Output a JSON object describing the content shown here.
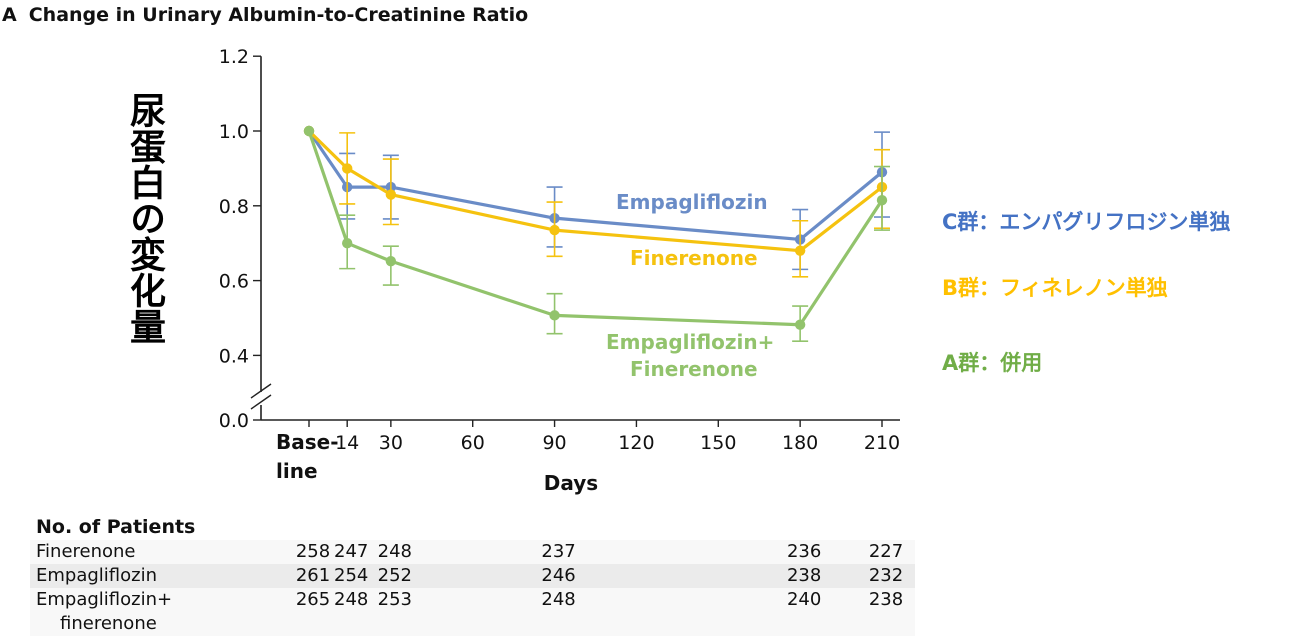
{
  "panel": {
    "letter": "A",
    "title": "Change in Urinary Albumin-to-Creatinine Ratio"
  },
  "ylabel_jp": "尿蛋白の変化量",
  "legend_jp": [
    {
      "text": "C群：エンパグリフロジン単独",
      "color": "#4472c4"
    },
    {
      "text": "B群：フィネレノン単独",
      "color": "#ffc000"
    },
    {
      "text": "A群：併用",
      "color": "#70ad47"
    }
  ],
  "chart_data": {
    "type": "line",
    "xlabel": "Days",
    "ylabel": "",
    "x_ticks": [
      {
        "value": 0,
        "label": [
          "Base-",
          "line"
        ]
      },
      {
        "value": 14,
        "label": [
          "14"
        ]
      },
      {
        "value": 30,
        "label": [
          "30"
        ]
      },
      {
        "value": 60,
        "label": [
          "60"
        ]
      },
      {
        "value": 90,
        "label": [
          "90"
        ]
      },
      {
        "value": 120,
        "label": [
          "120"
        ]
      },
      {
        "value": 150,
        "label": [
          "150"
        ]
      },
      {
        "value": 180,
        "label": [
          "180"
        ]
      },
      {
        "value": 210,
        "label": [
          "210"
        ]
      }
    ],
    "y_ticks": [
      "0.0",
      "0.4",
      "0.6",
      "0.8",
      "1.0",
      "1.2"
    ],
    "ylim": [
      0.35,
      1.2
    ],
    "y_axis_break": true,
    "series": [
      {
        "name": "Empagliflozin",
        "color": "#6a8cc7",
        "label_lines": [
          "Empagliflozin"
        ],
        "x": [
          0,
          14,
          30,
          90,
          180,
          210
        ],
        "y": [
          1.0,
          0.85,
          0.85,
          0.767,
          0.71,
          0.89
        ],
        "err_low": [
          1.0,
          0.765,
          0.765,
          0.69,
          0.63,
          0.77
        ],
        "err_high": [
          1.0,
          0.94,
          0.935,
          0.85,
          0.79,
          0.997
        ]
      },
      {
        "name": "Finerenone",
        "color": "#f5c20f",
        "label_lines": [
          "Finerenone"
        ],
        "x": [
          0,
          14,
          30,
          90,
          180,
          210
        ],
        "y": [
          1.0,
          0.9,
          0.83,
          0.735,
          0.68,
          0.85
        ],
        "err_low": [
          1.0,
          0.805,
          0.75,
          0.665,
          0.61,
          0.74
        ],
        "err_high": [
          1.0,
          0.995,
          0.925,
          0.81,
          0.76,
          0.95
        ]
      },
      {
        "name": "Empagliflozin+Finerenone",
        "color": "#92c36c",
        "label_lines": [
          "Empagliflozin+",
          "Finerenone"
        ],
        "x": [
          0,
          14,
          30,
          90,
          180,
          210
        ],
        "y": [
          1.0,
          0.7,
          0.652,
          0.507,
          0.482,
          0.815
        ],
        "err_low": [
          1.0,
          0.632,
          0.588,
          0.458,
          0.438,
          0.735
        ],
        "err_high": [
          1.0,
          0.775,
          0.692,
          0.565,
          0.532,
          0.905
        ]
      }
    ]
  },
  "patients": {
    "title": "No. of Patients",
    "days": [
      0,
      14,
      30,
      90,
      180,
      210
    ],
    "rows": [
      {
        "name": "Finerenone",
        "values": [
          "258",
          "247",
          "248",
          "237",
          "236",
          "227"
        ]
      },
      {
        "name": "Empagliflozin",
        "values": [
          "261",
          "254",
          "252",
          "246",
          "238",
          "232"
        ]
      },
      {
        "name": "Empagliflozin+",
        "name2": "finerenone",
        "values": [
          "265",
          "248",
          "253",
          "248",
          "240",
          "238"
        ]
      }
    ]
  }
}
